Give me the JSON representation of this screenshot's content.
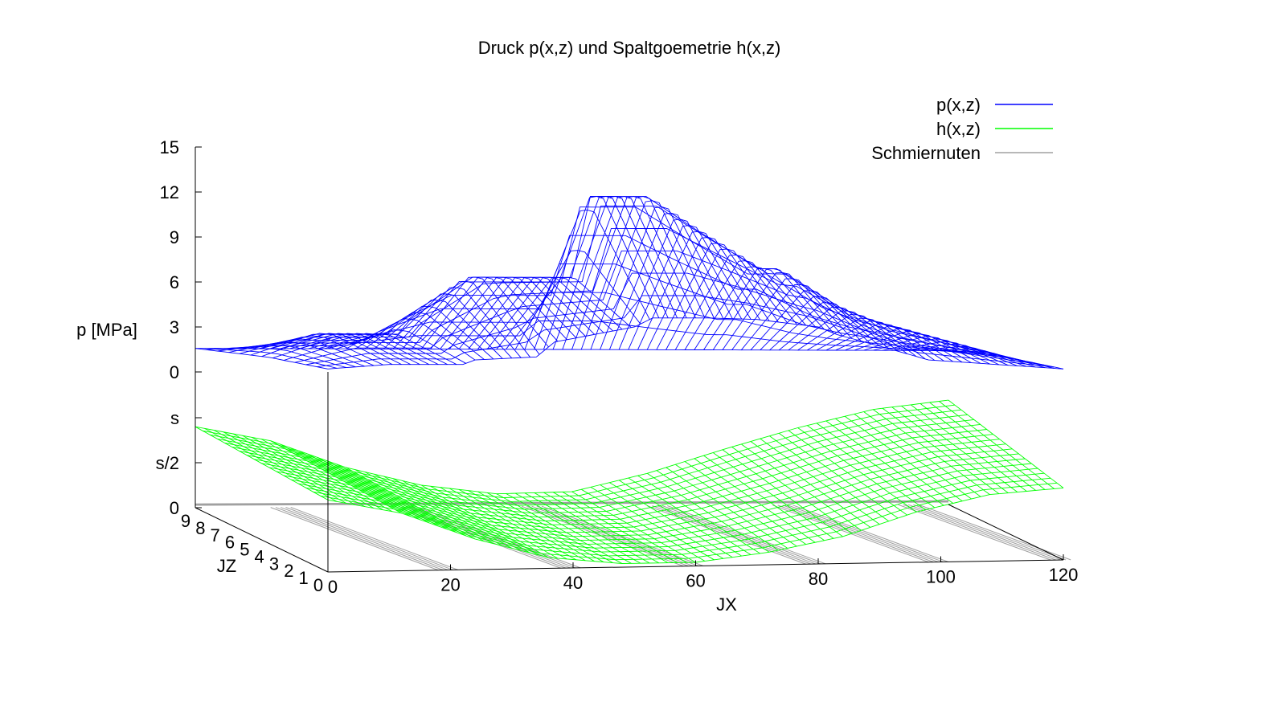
{
  "chart_data": {
    "type": "surface3d",
    "title": "Druck p(x,z) und Spaltgoemetrie h(x,z)",
    "xlabel": "JX",
    "ylabel": "JZ",
    "zlabel": "p [MPa]",
    "x_ticks": [
      "0",
      "20",
      "40",
      "60",
      "80",
      "100",
      "120"
    ],
    "y_ticks": [
      "0",
      "1",
      "2",
      "3",
      "4",
      "5",
      "6",
      "7",
      "8",
      "9"
    ],
    "z_ticks": [
      "0",
      "s/2",
      "s",
      "0",
      "3",
      "6",
      "9",
      "12",
      "15"
    ],
    "xlim": [
      0,
      120
    ],
    "ylim": [
      0,
      9
    ],
    "plim": [
      0,
      15
    ],
    "grid": false,
    "legend_position": "top-right",
    "series": [
      {
        "name": "p(x,z)",
        "color": "#0000ff",
        "ridge_profile_x": [
          0,
          10,
          22,
          24,
          34,
          37,
          50,
          53,
          62,
          70,
          80,
          83,
          92,
          98,
          120
        ],
        "ridge_profile_p": [
          0.5,
          2.0,
          2.0,
          3.0,
          5.8,
          5.8,
          5.8,
          11.2,
          11.2,
          9.0,
          6.4,
          6.4,
          4.0,
          3.0,
          0.5
        ],
        "front_profile_p": [
          0.2,
          0.5,
          0.5,
          0.8,
          1.0,
          2.0,
          3.0,
          3.6,
          3.6,
          3.5,
          3.0,
          2.5,
          1.5,
          0.8,
          0.2
        ]
      },
      {
        "name": "h(x,z)",
        "color": "#00ff00",
        "h_back_over_s": [
          0.45,
          0.37,
          0.22,
          0.12,
          0.07,
          0.08,
          0.18,
          0.31,
          0.43,
          0.53,
          0.58
        ],
        "h_front_over_s": [
          0.4,
          0.32,
          0.17,
          0.06,
          0.02,
          0.02,
          0.07,
          0.15,
          0.28,
          0.37,
          0.4
        ]
      },
      {
        "name": "Schmiernuten",
        "color": "#a0a0a0",
        "grooves_x": [
          20,
          40,
          60,
          80,
          100,
          120
        ]
      }
    ]
  }
}
